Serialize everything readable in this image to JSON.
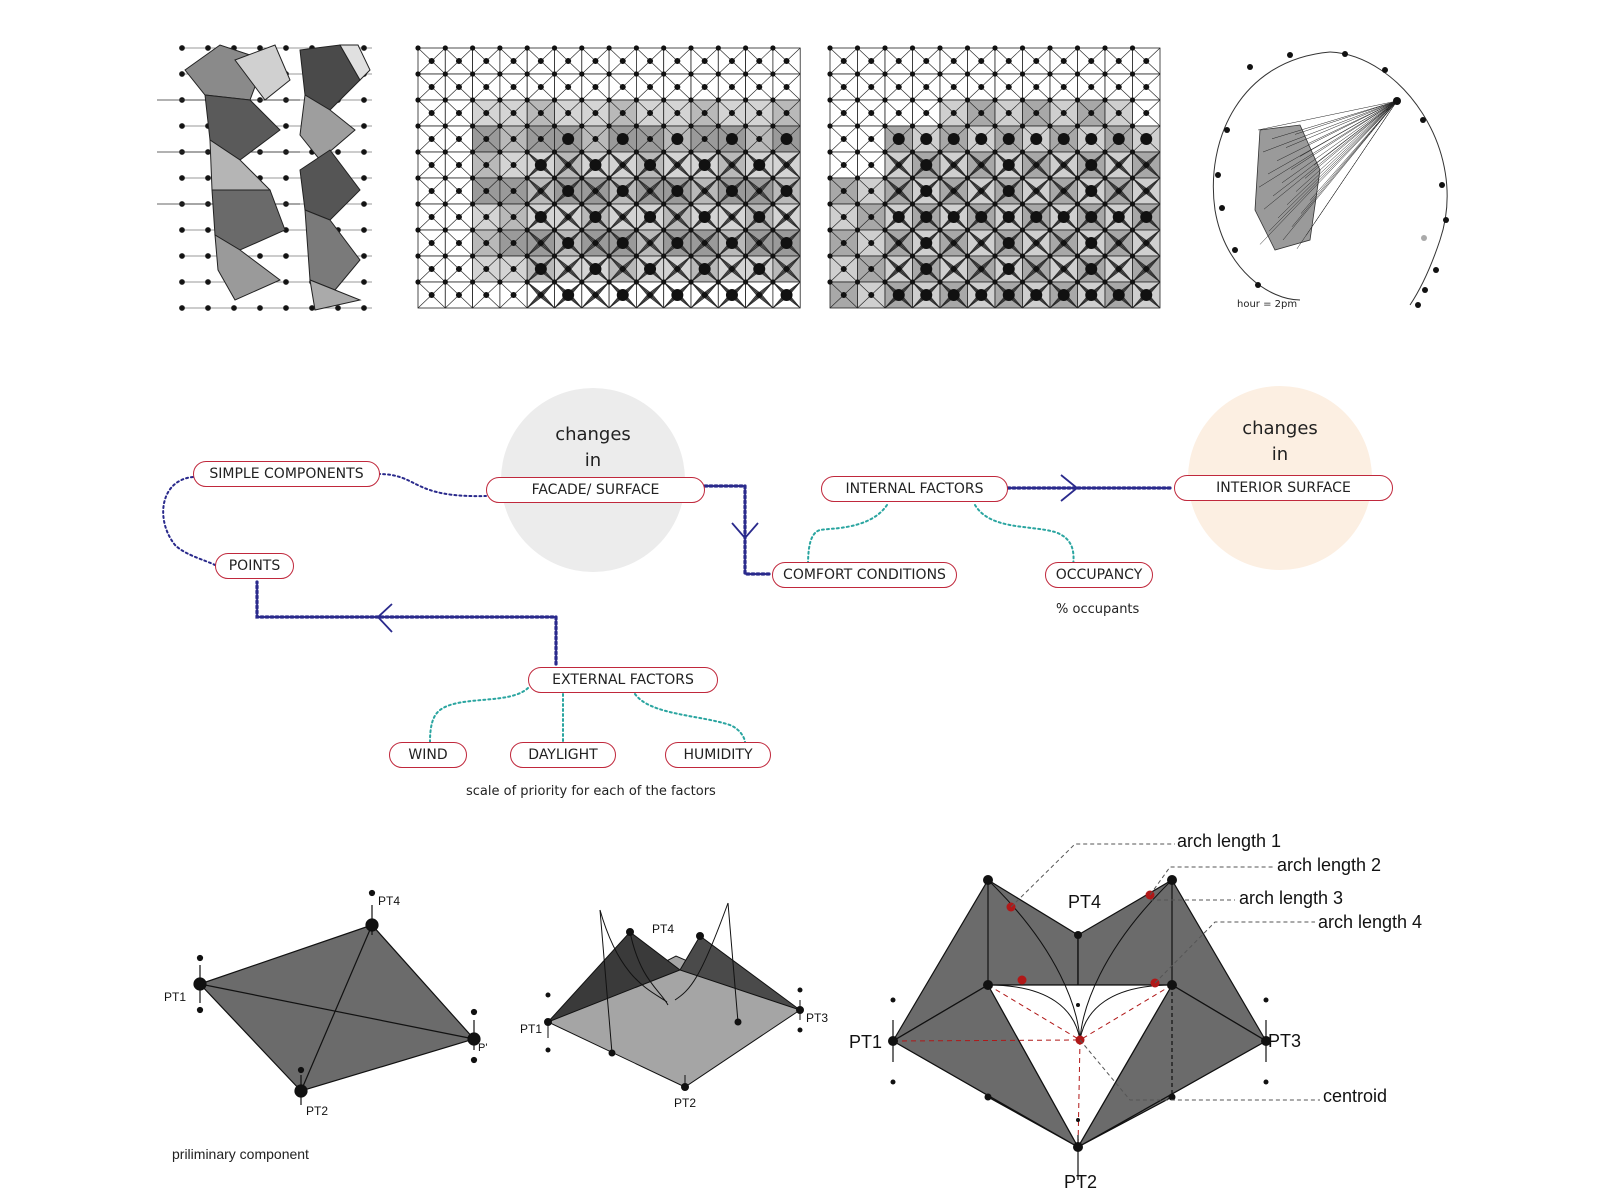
{
  "top_panels": {
    "sun_caption": "hour = 2pm"
  },
  "flow": {
    "changes_facade": {
      "line1": "changes",
      "line2": "in"
    },
    "changes_interior": {
      "line1": "changes",
      "line2": "in"
    },
    "nodes": {
      "simple_components": "SIMPLE COMPONENTS",
      "facade_surface": "FACADE/ SURFACE",
      "internal_factors": "INTERNAL FACTORS",
      "interior_surface": "INTERIOR SURFACE",
      "points": "POINTS",
      "comfort_conditions": "COMFORT CONDITIONS",
      "occupancy": "OCCUPANCY",
      "external_factors": "EXTERNAL FACTORS",
      "wind": "WIND",
      "daylight": "DAYLIGHT",
      "humidity": "HUMIDITY"
    },
    "occupancy_note": "% occupants",
    "priority_note": "scale of priority for each of the factors"
  },
  "components": {
    "preliminary": {
      "caption": "priliminary component",
      "pt1": "PT1",
      "pt2": "PT2",
      "pt3": "P'",
      "pt4": "PT4"
    },
    "middle": {
      "pt1": "PT1",
      "pt2": "PT2",
      "pt3": "PT3",
      "pt4": "PT4"
    },
    "detailed": {
      "pt1": "PT1",
      "pt2": "PT2",
      "pt3": "PT3",
      "pt4": "PT4",
      "arch1": "arch length 1",
      "arch2": "arch length 2",
      "arch3": "arch length 3",
      "arch4": "arch length 4",
      "centroid": "centroid"
    }
  },
  "colors": {
    "pill_border": "#c0283c",
    "flow_dark": "#2a2a8c",
    "flow_teal": "#2aa5a0",
    "accent_red": "#b01818"
  }
}
